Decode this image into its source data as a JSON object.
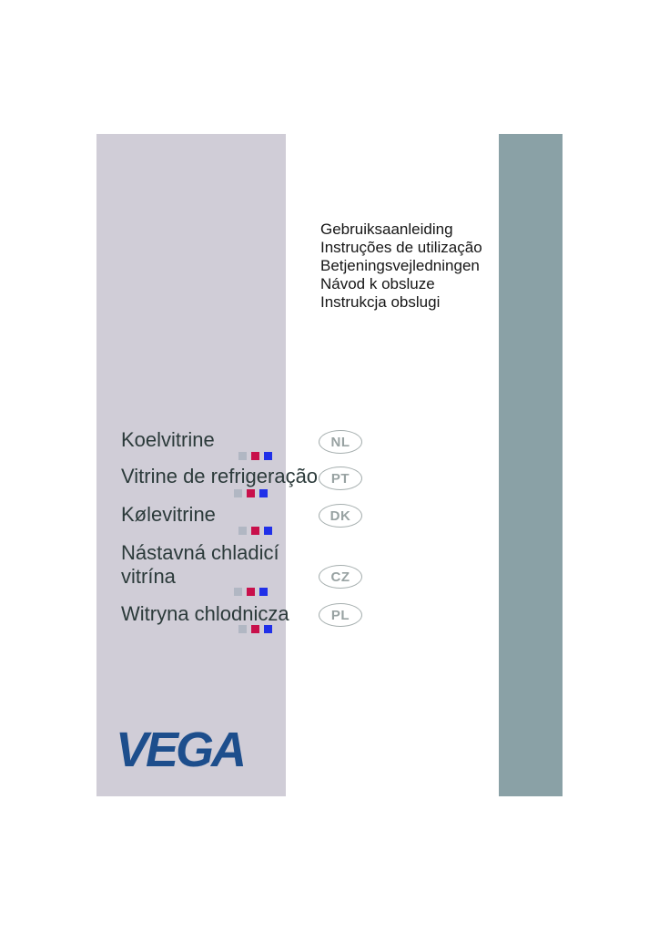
{
  "document": {
    "kind": "manual-cover",
    "title_lines": [
      "Gebruiksaanleiding",
      "Instruções de utilização",
      "Betjeningsvejledningen",
      "Návod k obsluze",
      "Instrukcja obslugi"
    ],
    "products": [
      {
        "lines": [
          "Koelvitrine"
        ],
        "lang": "NL"
      },
      {
        "lines": [
          "Vitrine de refrigeração"
        ],
        "lang": "PT"
      },
      {
        "lines": [
          "Kølevitrine"
        ],
        "lang": "DK"
      },
      {
        "lines": [
          "Nástavná chladicí",
          "vitrína"
        ],
        "lang": "CZ"
      },
      {
        "lines": [
          "Witryna chlodnicza"
        ],
        "lang": "PL"
      }
    ],
    "brand": {
      "logo_text": "VEGA"
    }
  },
  "colors": {
    "left_band": "#d0cdd7",
    "right_band": "#8aa1a6",
    "product_text": "#2b3a3a",
    "title_text": "#161616",
    "badge": "#98a2a2",
    "logo_blue": "#1d4e8c",
    "squares": [
      "#b1b7c3",
      "#c8104b",
      "#2030e8"
    ]
  },
  "decor": {
    "square_styles": [
      "background:#b1b7c3",
      "background:#c8104b",
      "background:#2030e8"
    ]
  }
}
